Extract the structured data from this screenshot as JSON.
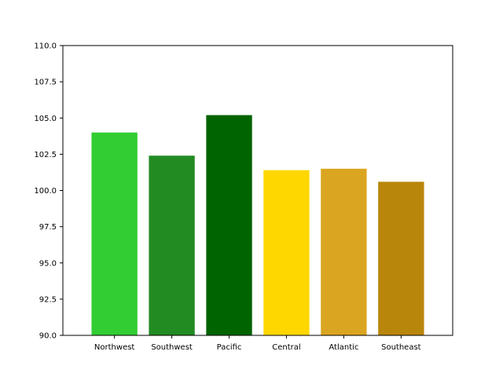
{
  "chart_data": {
    "type": "bar",
    "title": "",
    "xlabel": "",
    "ylabel": "",
    "categories": [
      "Northwest",
      "Southwest",
      "Pacific",
      "Central",
      "Atlantic",
      "Southeast"
    ],
    "values": [
      104.0,
      102.4,
      105.2,
      101.4,
      101.5,
      100.6
    ],
    "colors": [
      "#32cd32",
      "#228b22",
      "#006400",
      "#ffd700",
      "#daa520",
      "#b8860b"
    ],
    "ylim": [
      90.0,
      110.0
    ],
    "yticks": [
      "90.0",
      "92.5",
      "95.0",
      "97.5",
      "100.0",
      "102.5",
      "105.0",
      "107.5",
      "110.0"
    ],
    "grid": false,
    "legend": "none"
  }
}
